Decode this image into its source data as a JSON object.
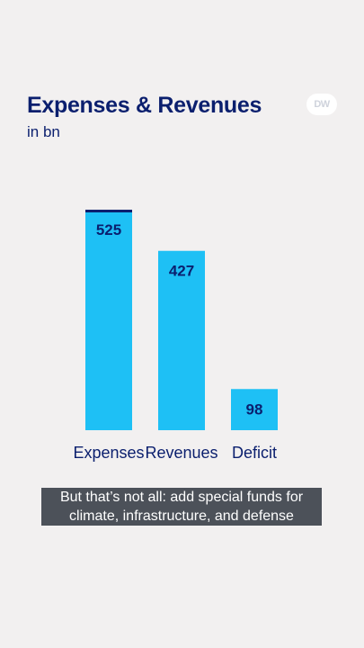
{
  "header": {
    "title": "Expenses & Revenues",
    "subtitle": "in bn",
    "logo_text": "DW"
  },
  "chart_data": {
    "type": "bar",
    "categories": [
      "Expenses",
      "Revenues",
      "Deficit"
    ],
    "values": [
      525,
      427,
      98
    ],
    "title": "Expenses & Revenues",
    "subtitle": "in bn",
    "bar_color": "#1ec0f5",
    "highlight_color": "#0b1f6e",
    "grid": false
  },
  "caption": {
    "text": "But that’s not all: add special funds for climate, infrastructure, and defense"
  }
}
